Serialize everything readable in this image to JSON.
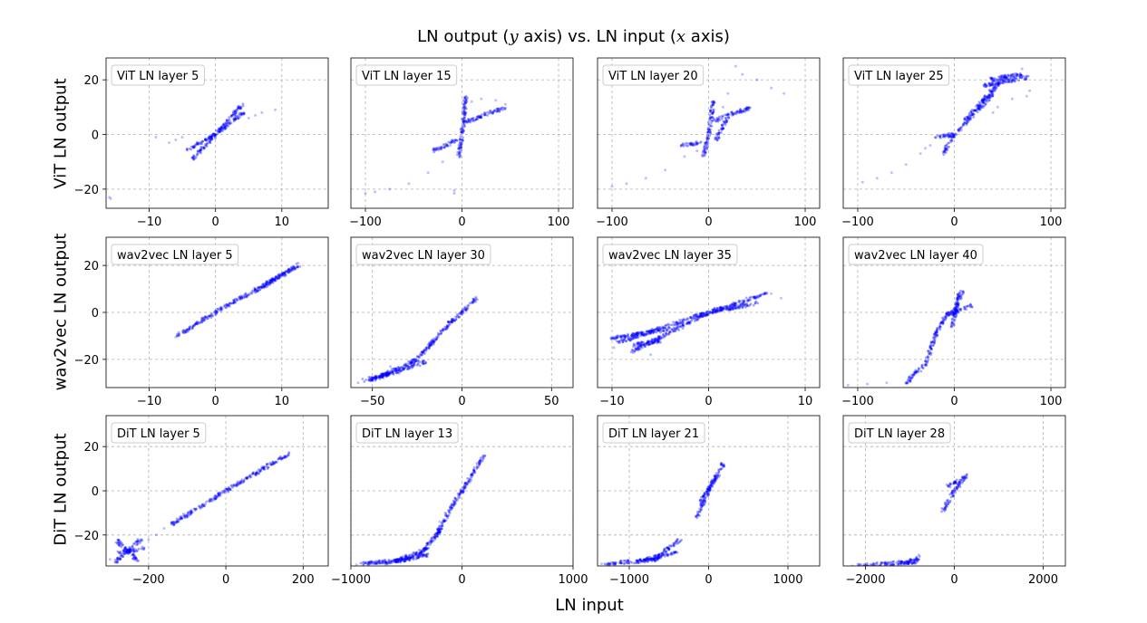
{
  "suptitle": {
    "part1": "LN output (",
    "yvar": "y",
    "part2": " axis) vs. LN input (",
    "xvar": "x",
    "part3": " axis)"
  },
  "xlabel": "LN input",
  "row_labels": [
    "ViT LN output",
    "wav2vec LN output",
    "DiT LN output"
  ],
  "colors": {
    "points": "#0000ff",
    "grid": "#b0b0b0"
  },
  "chart_data": [
    {
      "type": "scatter",
      "title": "ViT LN layer 5",
      "xlim": [
        -16.5,
        17
      ],
      "ylim": [
        -27,
        28
      ],
      "xticks": [
        -10,
        0,
        10
      ],
      "yticks": [
        -20,
        0,
        20
      ],
      "grid": true,
      "ylabel": "ViT LN output",
      "segments": [
        [
          -4.2,
          -5.5,
          0,
          0
        ],
        [
          0,
          0,
          4.2,
          8
        ],
        [
          -3.4,
          -9,
          0,
          0
        ],
        [
          0,
          0,
          4,
          11
        ]
      ],
      "sparse": [
        [
          -9,
          -1
        ],
        [
          -7,
          -3
        ],
        [
          -6,
          -2
        ],
        [
          -5,
          -1
        ],
        [
          5,
          6
        ],
        [
          6,
          7
        ],
        [
          7,
          8
        ],
        [
          9,
          9
        ],
        [
          -16,
          -23
        ],
        [
          -15.8,
          -23.5
        ]
      ]
    },
    {
      "type": "scatter",
      "title": "ViT LN layer 15",
      "xlim": [
        -115,
        115
      ],
      "ylim": [
        -27,
        28
      ],
      "xticks": [
        -100,
        0,
        100
      ],
      "yticks": [],
      "grid": true,
      "ylabel": "",
      "segments": [
        [
          -3,
          -8,
          0,
          0
        ],
        [
          0,
          0,
          4,
          14
        ],
        [
          -30,
          -6,
          -5,
          -2
        ],
        [
          0,
          4,
          45,
          10
        ]
      ],
      "sparse": [
        [
          -100,
          -21.5
        ],
        [
          -90,
          -21
        ],
        [
          -75,
          -20
        ],
        [
          -55,
          -18
        ],
        [
          -35,
          -14
        ],
        [
          -20,
          -10
        ],
        [
          -8,
          -20.5
        ],
        [
          -8,
          -21.5
        ],
        [
          10,
          12
        ],
        [
          20,
          13
        ],
        [
          35,
          12.5
        ],
        [
          45,
          11
        ],
        [
          -12,
          -4
        ]
      ]
    },
    {
      "type": "scatter",
      "title": "ViT LN layer 20",
      "xlim": [
        -115,
        115
      ],
      "ylim": [
        -27,
        28
      ],
      "xticks": [
        -100,
        0,
        100
      ],
      "yticks": [],
      "grid": true,
      "ylabel": "",
      "segments": [
        [
          -5,
          -8,
          0,
          0
        ],
        [
          0,
          0,
          5,
          12
        ],
        [
          -28,
          -4,
          -8,
          -3
        ],
        [
          5,
          5,
          45,
          10
        ],
        [
          8,
          -2,
          20,
          7
        ]
      ],
      "sparse": [
        [
          -100,
          -19
        ],
        [
          -85,
          -18
        ],
        [
          -65,
          -16
        ],
        [
          -45,
          -13
        ],
        [
          -25,
          -8
        ],
        [
          -12,
          -6
        ],
        [
          20,
          15
        ],
        [
          28,
          25
        ],
        [
          35,
          22
        ],
        [
          50,
          20
        ],
        [
          65,
          17
        ],
        [
          78,
          15
        ],
        [
          15,
          10
        ]
      ]
    },
    {
      "type": "scatter",
      "title": "ViT LN layer 25",
      "xlim": [
        -115,
        115
      ],
      "ylim": [
        -27,
        28
      ],
      "xticks": [
        -100,
        0,
        100
      ],
      "yticks": [],
      "grid": true,
      "ylabel": "",
      "segments": [
        [
          -20,
          -1,
          0,
          0
        ],
        [
          -12,
          -7,
          0,
          0
        ],
        [
          0,
          0,
          40,
          15
        ],
        [
          10,
          5,
          55,
          22
        ],
        [
          30,
          18,
          78,
          21
        ],
        [
          35,
          20,
          70,
          22
        ]
      ],
      "sparse": [
        [
          -95,
          -17.5
        ],
        [
          -80,
          -16
        ],
        [
          -65,
          -14
        ],
        [
          -50,
          -11
        ],
        [
          -35,
          -7
        ],
        [
          -25,
          -4
        ],
        [
          40,
          8
        ],
        [
          45,
          10
        ],
        [
          60,
          13
        ],
        [
          75,
          14
        ],
        [
          78,
          16
        ],
        [
          70,
          24
        ],
        [
          -30,
          -5
        ]
      ]
    },
    {
      "type": "scatter",
      "title": "wav2vec LN layer 5",
      "xlim": [
        -16.5,
        17
      ],
      "ylim": [
        -32,
        32
      ],
      "xticks": [
        -10,
        0,
        10
      ],
      "yticks": [
        -20,
        0,
        20
      ],
      "grid": true,
      "ylabel": "wav2vec LN output",
      "segments": [
        [
          -5.8,
          -10,
          0,
          0
        ],
        [
          0,
          0,
          12.5,
          20
        ],
        [
          6,
          9,
          12,
          19
        ]
      ],
      "sparse": [
        [
          11,
          18
        ],
        [
          12.5,
          21
        ],
        [
          -6,
          -10.5
        ]
      ]
    },
    {
      "type": "scatter",
      "title": "wav2vec LN layer 30",
      "xlim": [
        -62,
        62
      ],
      "ylim": [
        -32,
        32
      ],
      "xticks": [
        -50,
        0,
        50
      ],
      "yticks": [],
      "grid": true,
      "ylabel": "",
      "segments": [
        [
          -55,
          -29,
          -40,
          -26
        ],
        [
          -45,
          -27,
          -25,
          -20
        ],
        [
          -30,
          -23,
          -15,
          -12
        ],
        [
          -18,
          -14,
          -5,
          -3
        ],
        [
          -6,
          -4,
          0,
          0
        ],
        [
          0,
          0,
          8,
          6
        ],
        [
          -52,
          -29,
          -20,
          -21
        ]
      ],
      "sparse": [
        [
          -58,
          -30
        ],
        [
          -35,
          -26
        ],
        [
          -40,
          -23
        ]
      ]
    },
    {
      "type": "scatter",
      "title": "wav2vec LN layer 35",
      "xlim": [
        -11.5,
        11.5
      ],
      "ylim": [
        -32,
        32
      ],
      "xticks": [
        -10,
        0,
        10
      ],
      "yticks": [],
      "grid": true,
      "ylabel": "",
      "segments": [
        [
          -9.5,
          -13,
          0,
          0
        ],
        [
          -8,
          -17,
          0,
          0
        ],
        [
          -10,
          -11,
          -4,
          -7
        ],
        [
          0,
          0,
          6,
          8
        ],
        [
          0,
          0,
          5,
          4
        ],
        [
          -8,
          -14,
          -5,
          -12
        ]
      ],
      "sparse": [
        [
          6.5,
          8
        ],
        [
          7.5,
          6
        ],
        [
          -6,
          -18
        ],
        [
          -9.8,
          -15
        ],
        [
          4,
          5
        ]
      ]
    },
    {
      "type": "scatter",
      "title": "wav2vec LN layer 40",
      "xlim": [
        -115,
        115
      ],
      "ylim": [
        -32,
        32
      ],
      "xticks": [
        -100,
        0,
        100
      ],
      "yticks": [],
      "grid": true,
      "ylabel": "",
      "segments": [
        [
          -50,
          -30,
          -30,
          -22
        ],
        [
          -30,
          -22,
          -18,
          -8
        ],
        [
          -18,
          -8,
          -8,
          -1
        ],
        [
          -8,
          -1,
          0,
          0
        ],
        [
          0,
          0,
          8,
          9
        ],
        [
          -2,
          -6,
          5,
          8
        ],
        [
          -8,
          -1,
          18,
          3
        ]
      ],
      "sparse": [
        [
          -110,
          -31
        ],
        [
          -90,
          -30.5
        ],
        [
          -70,
          -30
        ]
      ]
    },
    {
      "type": "scatter",
      "title": "DiT LN layer 5",
      "xlim": [
        -310,
        265
      ],
      "ylim": [
        -34,
        34
      ],
      "xticks": [
        -200,
        0,
        200
      ],
      "yticks": [
        -20,
        0,
        20
      ],
      "grid": true,
      "ylabel": "DiT LN output",
      "segments": [
        [
          -140,
          -15,
          0,
          0
        ],
        [
          0,
          0,
          165,
          17
        ],
        [
          -285,
          -32,
          -220,
          -22
        ],
        [
          -285,
          -22,
          -225,
          -32
        ],
        [
          -280,
          -28,
          -210,
          -26
        ]
      ],
      "sparse": [
        [
          -200,
          -22
        ],
        [
          -180,
          -20
        ],
        [
          -160,
          -17
        ],
        [
          -300,
          -31
        ]
      ]
    },
    {
      "type": "scatter",
      "title": "DiT LN layer 13",
      "xlim": [
        -1000,
        1000
      ],
      "ylim": [
        -34,
        34
      ],
      "xticks": [
        -1000,
        0,
        1000
      ],
      "yticks": [],
      "grid": true,
      "ylabel": "",
      "segments": [
        [
          -900,
          -33,
          -450,
          -31
        ],
        [
          -600,
          -32,
          -300,
          -26
        ],
        [
          -400,
          -30,
          -200,
          -18
        ],
        [
          -250,
          -22,
          -80,
          -6
        ],
        [
          -100,
          -8,
          0,
          0
        ],
        [
          0,
          0,
          200,
          16
        ],
        [
          -700,
          -33,
          -300,
          -29
        ]
      ],
      "sparse": [
        [
          -950,
          -33.5
        ],
        [
          -150,
          -10
        ],
        [
          -200,
          -14
        ]
      ]
    },
    {
      "type": "scatter",
      "title": "DiT LN layer 21",
      "xlim": [
        -1400,
        1400
      ],
      "ylim": [
        -34,
        34
      ],
      "xticks": [
        -1000,
        0,
        1000
      ],
      "yticks": [],
      "grid": true,
      "ylabel": "",
      "segments": [
        [
          -1300,
          -33,
          -600,
          -31
        ],
        [
          -700,
          -31,
          -350,
          -22
        ],
        [
          -900,
          -32,
          -400,
          -28
        ],
        [
          -150,
          -12,
          0,
          0
        ],
        [
          0,
          0,
          180,
          12
        ],
        [
          -100,
          -5,
          120,
          8
        ]
      ],
      "sparse": [
        [
          -1350,
          -33
        ],
        [
          -400,
          -24
        ]
      ]
    },
    {
      "type": "scatter",
      "title": "DiT LN layer 28",
      "xlim": [
        -2500,
        2500
      ],
      "ylim": [
        -34,
        34
      ],
      "xticks": [
        -2000,
        0,
        2000
      ],
      "yticks": [],
      "grid": true,
      "ylabel": "",
      "segments": [
        [
          -2200,
          -34,
          -800,
          -32
        ],
        [
          -1200,
          -33,
          -750,
          -30
        ],
        [
          -250,
          -9,
          0,
          0
        ],
        [
          0,
          0,
          270,
          7
        ],
        [
          -150,
          2,
          250,
          6
        ]
      ],
      "sparse": [
        [
          -2300,
          -34
        ],
        [
          -800,
          -29
        ]
      ]
    }
  ]
}
